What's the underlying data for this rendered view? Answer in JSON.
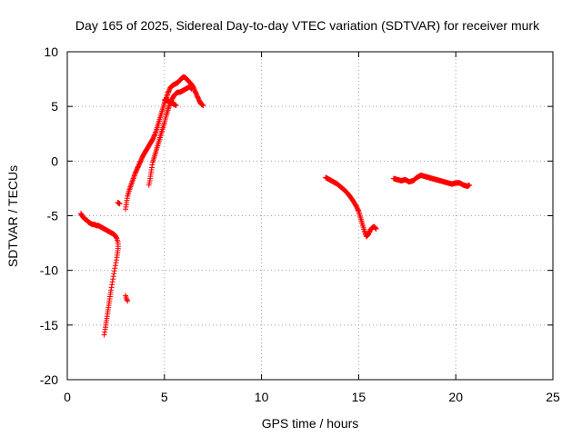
{
  "chart_data": {
    "type": "scatter",
    "title": "Day 165 of 2025, Sidereal Day-to-day VTEC variation (SDTVAR) for receiver murk",
    "xlabel": "GPS time / hours",
    "ylabel": "SDTVAR / TECUs",
    "xlim": [
      0,
      25
    ],
    "ylim": [
      -20,
      10
    ],
    "xticks": [
      0,
      5,
      10,
      15,
      20,
      25
    ],
    "yticks": [
      -20,
      -15,
      -10,
      -5,
      0,
      5,
      10
    ],
    "xtick_labels": [
      "0",
      "5",
      "10",
      "15",
      "20",
      "25"
    ],
    "ytick_labels": [
      "-20",
      "-15",
      "-10",
      "-5",
      "0",
      "5",
      "10"
    ],
    "grid": true,
    "marker": "plus",
    "color": "#ff0000",
    "series": [
      {
        "segments": [
          [
            [
              0.7,
              -4.8
            ],
            [
              0.8,
              -5.1
            ],
            [
              0.9,
              -5.3
            ],
            [
              1.0,
              -5.4
            ],
            [
              1.1,
              -5.6
            ],
            [
              1.2,
              -5.7
            ],
            [
              1.3,
              -5.8
            ],
            [
              1.4,
              -5.8
            ],
            [
              1.5,
              -5.9
            ],
            [
              1.6,
              -5.9
            ],
            [
              1.7,
              -6.0
            ],
            [
              1.8,
              -6.1
            ],
            [
              1.9,
              -6.2
            ],
            [
              2.0,
              -6.3
            ],
            [
              2.1,
              -6.4
            ],
            [
              2.2,
              -6.5
            ],
            [
              2.3,
              -6.6
            ],
            [
              2.4,
              -6.7
            ],
            [
              2.5,
              -6.9
            ],
            [
              2.55,
              -7.1
            ],
            [
              2.6,
              -7.4
            ],
            [
              2.62,
              -7.8
            ],
            [
              2.6,
              -8.2
            ],
            [
              2.55,
              -8.8
            ],
            [
              2.5,
              -9.3
            ],
            [
              2.45,
              -9.8
            ],
            [
              2.4,
              -10.3
            ],
            [
              2.35,
              -10.8
            ],
            [
              2.3,
              -11.3
            ],
            [
              2.25,
              -11.8
            ],
            [
              2.2,
              -12.4
            ],
            [
              2.15,
              -13.0
            ],
            [
              2.1,
              -13.6
            ],
            [
              2.05,
              -14.2
            ],
            [
              2.0,
              -14.8
            ],
            [
              1.95,
              -15.4
            ],
            [
              1.9,
              -15.9
            ]
          ],
          [
            [
              2.6,
              -3.8
            ],
            [
              2.7,
              -3.9
            ]
          ],
          [
            [
              3.0,
              -12.3
            ],
            [
              3.05,
              -12.6
            ],
            [
              3.1,
              -12.8
            ]
          ],
          [
            [
              3.0,
              -4.4
            ],
            [
              3.05,
              -3.8
            ],
            [
              3.1,
              -3.2
            ],
            [
              3.2,
              -2.6
            ],
            [
              3.3,
              -2.1
            ],
            [
              3.4,
              -1.6
            ],
            [
              3.5,
              -1.1
            ],
            [
              3.6,
              -0.7
            ],
            [
              3.7,
              -0.3
            ],
            [
              3.8,
              0.1
            ],
            [
              3.9,
              0.5
            ],
            [
              4.0,
              0.8
            ],
            [
              4.1,
              1.1
            ],
            [
              4.2,
              1.4
            ],
            [
              4.3,
              1.7
            ],
            [
              4.4,
              2.0
            ],
            [
              4.5,
              2.4
            ],
            [
              4.6,
              2.9
            ],
            [
              4.7,
              3.5
            ],
            [
              4.8,
              4.1
            ],
            [
              4.9,
              4.7
            ],
            [
              5.0,
              5.3
            ],
            [
              5.1,
              5.8
            ],
            [
              5.2,
              6.3
            ],
            [
              5.3,
              6.7
            ],
            [
              5.4,
              6.9
            ],
            [
              5.5,
              7.0
            ],
            [
              5.6,
              7.1
            ],
            [
              5.7,
              7.2
            ],
            [
              5.8,
              7.4
            ],
            [
              5.9,
              7.6
            ],
            [
              6.0,
              7.7
            ],
            [
              6.1,
              7.6
            ],
            [
              6.2,
              7.4
            ],
            [
              6.3,
              7.2
            ],
            [
              6.4,
              7.0
            ],
            [
              6.5,
              6.7
            ],
            [
              6.6,
              6.3
            ],
            [
              6.7,
              5.9
            ],
            [
              6.8,
              5.5
            ],
            [
              6.9,
              5.2
            ],
            [
              7.0,
              5.1
            ]
          ],
          [
            [
              4.2,
              -2.2
            ],
            [
              4.25,
              -1.8
            ],
            [
              4.3,
              -1.2
            ],
            [
              4.35,
              -0.6
            ],
            [
              4.4,
              -0.1
            ],
            [
              4.5,
              0.5
            ],
            [
              4.6,
              1.1
            ],
            [
              4.7,
              1.7
            ],
            [
              4.8,
              2.3
            ],
            [
              4.9,
              2.9
            ],
            [
              5.0,
              3.5
            ],
            [
              5.1,
              4.2
            ],
            [
              5.2,
              4.8
            ],
            [
              5.3,
              5.3
            ],
            [
              5.4,
              5.7
            ],
            [
              5.5,
              6.0
            ],
            [
              5.6,
              6.2
            ],
            [
              5.7,
              6.3
            ],
            [
              5.8,
              6.3
            ],
            [
              5.9,
              6.4
            ],
            [
              6.0,
              6.5
            ],
            [
              6.1,
              6.6
            ],
            [
              6.2,
              6.7
            ],
            [
              6.3,
              6.8
            ],
            [
              6.4,
              6.6
            ]
          ],
          [
            [
              5.0,
              5.6
            ],
            [
              5.2,
              5.5
            ],
            [
              5.4,
              5.3
            ],
            [
              5.6,
              5.1
            ]
          ],
          [
            [
              13.3,
              -1.5
            ],
            [
              13.5,
              -1.7
            ],
            [
              13.7,
              -1.9
            ],
            [
              13.9,
              -2.1
            ],
            [
              14.1,
              -2.4
            ],
            [
              14.3,
              -2.7
            ],
            [
              14.5,
              -3.1
            ],
            [
              14.7,
              -3.6
            ],
            [
              14.9,
              -4.2
            ],
            [
              15.0,
              -4.6
            ],
            [
              15.1,
              -5.2
            ],
            [
              15.2,
              -5.8
            ],
            [
              15.3,
              -6.4
            ],
            [
              15.4,
              -6.9
            ],
            [
              15.5,
              -6.7
            ],
            [
              15.6,
              -6.3
            ],
            [
              15.7,
              -6.1
            ],
            [
              15.8,
              -6.0
            ],
            [
              15.9,
              -6.2
            ]
          ],
          [
            [
              16.8,
              -1.6
            ],
            [
              17.0,
              -1.7
            ],
            [
              17.2,
              -1.8
            ],
            [
              17.4,
              -1.7
            ],
            [
              17.6,
              -1.9
            ],
            [
              17.8,
              -1.8
            ],
            [
              18.0,
              -1.5
            ],
            [
              18.2,
              -1.3
            ],
            [
              18.4,
              -1.4
            ],
            [
              18.6,
              -1.5
            ],
            [
              18.8,
              -1.6
            ],
            [
              19.0,
              -1.7
            ],
            [
              19.2,
              -1.8
            ],
            [
              19.4,
              -1.9
            ],
            [
              19.6,
              -2.0
            ],
            [
              19.8,
              -2.1
            ],
            [
              20.0,
              -2.0
            ],
            [
              20.2,
              -2.0
            ],
            [
              20.4,
              -2.2
            ],
            [
              20.6,
              -2.3
            ],
            [
              20.7,
              -2.2
            ]
          ]
        ]
      }
    ]
  }
}
